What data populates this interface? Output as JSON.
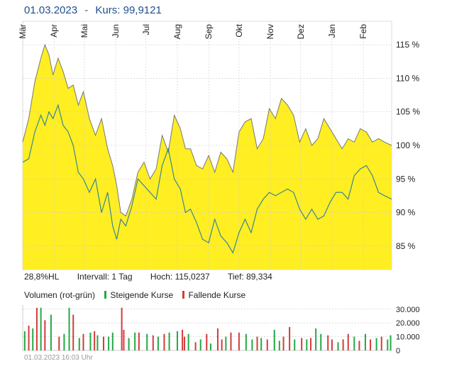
{
  "header": {
    "date": "01.03.2023",
    "separator": "-",
    "price_label": "Kurs: 99,9121"
  },
  "info": {
    "hl": "28,8%HL",
    "interval": "Intervall: 1 Tag",
    "high": "Hoch: 115,0237",
    "low": "Tief:  89,334"
  },
  "volume_legend": {
    "title": "Volumen (rot-grün)",
    "rising": "Steigende Kurse",
    "falling": "Fallende Kurse"
  },
  "footer": {
    "timestamp": "01.03.2023 16:03 Uhr"
  },
  "colors": {
    "area": "#ffee22",
    "main_line": "#777777",
    "compare_line": "#2a7f9a",
    "rising": "#22aa44",
    "falling": "#d63a3a",
    "grid": "#cccccc"
  },
  "chart_data": [
    {
      "type": "area",
      "title": "",
      "xlabel": "",
      "ylabel": "",
      "ylim": [
        81.5,
        118.5
      ],
      "y_ticks": [
        85,
        90,
        95,
        100,
        105,
        110,
        115
      ],
      "y_tick_labels": [
        "85 %",
        "90 %",
        "95 %",
        "100 %",
        "105 %",
        "110 %",
        "115 %"
      ],
      "x_tick_labels": [
        "Mär",
        "Apr",
        "Mai",
        "Jun",
        "Jul",
        "Aug",
        "Sep",
        "Okt",
        "Nov",
        "Dez",
        "Jan",
        "Feb"
      ],
      "x_tick_days": [
        0,
        31,
        61,
        92,
        122,
        153,
        184,
        214,
        245,
        275,
        306,
        337
      ],
      "x_range_days": [
        0,
        365
      ],
      "grid": true,
      "series": [
        {
          "x": [
            0,
            6,
            12,
            18,
            22,
            26,
            30,
            35,
            40,
            45,
            50,
            55,
            60,
            66,
            72,
            78,
            84,
            89,
            93,
            97,
            102,
            108,
            114,
            120,
            126,
            132,
            138,
            144,
            150,
            156,
            161,
            166,
            172,
            178,
            184,
            190,
            196,
            202,
            208,
            214,
            220,
            226,
            232,
            238,
            244,
            250,
            256,
            262,
            268,
            274,
            280,
            286,
            292,
            298,
            304,
            310,
            316,
            322,
            328,
            334,
            340,
            346,
            352,
            358,
            365
          ],
          "values": [
            100.5,
            104,
            109.5,
            113,
            115,
            113.5,
            110.5,
            113,
            111,
            108.5,
            109,
            106,
            108,
            104,
            101.5,
            104,
            99.5,
            97,
            94,
            90,
            89.5,
            92,
            96,
            97.5,
            95,
            96.5,
            101.5,
            99,
            104.5,
            102.5,
            99.5,
            99.5,
            97,
            96.5,
            98.5,
            96,
            99,
            98,
            96,
            102,
            103.5,
            104,
            99.5,
            101,
            105.5,
            104,
            107,
            106,
            104.5,
            100.5,
            102.5,
            100,
            101,
            104,
            102.5,
            101,
            99.5,
            101,
            100.5,
            102.5,
            102,
            100.5,
            101,
            100.5,
            100
          ]
        },
        {
          "x": [
            0,
            6,
            12,
            18,
            22,
            26,
            30,
            35,
            40,
            45,
            50,
            55,
            60,
            66,
            72,
            78,
            84,
            89,
            93,
            97,
            102,
            108,
            114,
            120,
            126,
            132,
            138,
            144,
            150,
            156,
            161,
            166,
            172,
            178,
            184,
            190,
            196,
            202,
            208,
            214,
            220,
            226,
            232,
            238,
            244,
            250,
            256,
            262,
            268,
            274,
            280,
            286,
            292,
            298,
            304,
            310,
            316,
            322,
            328,
            334,
            340,
            346,
            352,
            358,
            365
          ],
          "values": [
            97.5,
            98,
            102,
            104.5,
            103,
            105,
            104,
            106,
            103,
            102,
            100,
            96,
            95,
            93,
            95,
            90,
            93,
            88,
            86,
            89,
            88,
            91,
            95,
            94,
            93,
            92,
            97,
            99.5,
            95,
            93.5,
            90,
            90.5,
            88.5,
            86,
            85.5,
            89,
            86.5,
            85.5,
            84,
            87,
            89,
            87,
            90.5,
            92,
            93,
            92.5,
            93,
            93.5,
            93,
            90.5,
            89,
            90.5,
            89,
            89.5,
            91.5,
            93,
            93,
            92,
            95.5,
            96.5,
            97,
            95.5,
            93,
            92.5,
            92
          ]
        }
      ]
    },
    {
      "type": "bar",
      "title": "",
      "xlabel": "",
      "ylabel": "",
      "ylim": [
        0,
        33000
      ],
      "y_ticks": [
        0,
        10000,
        20000,
        30000
      ],
      "y_tick_labels": [
        "0",
        "10.000",
        "20.000",
        "30.000"
      ],
      "x_range_days": [
        0,
        365
      ],
      "series": [
        {
          "name": "Steigende Kurse",
          "x": [
            2,
            10,
            18,
            28,
            41,
            46,
            56,
            67,
            74,
            85,
            89,
            105,
            111,
            123,
            134,
            145,
            153,
            164,
            176,
            186,
            201,
            221,
            227,
            236,
            249,
            254,
            269,
            281,
            290,
            295,
            312,
            328,
            339,
            350,
            361,
            364
          ],
          "values": [
            14000,
            16000,
            31000,
            26000,
            12000,
            31000,
            9000,
            13000,
            11000,
            10000,
            13000,
            9000,
            13000,
            12000,
            10000,
            13000,
            14000,
            12000,
            8000,
            5000,
            10000,
            12000,
            8000,
            9000,
            15000,
            7000,
            8000,
            8000,
            16000,
            12000,
            6000,
            10000,
            12000,
            9000,
            8000,
            11000
          ]
        },
        {
          "name": "Fallende Kurse",
          "x": [
            6,
            14,
            22,
            36,
            50,
            60,
            71,
            80,
            98,
            100,
            115,
            129,
            140,
            158,
            160,
            171,
            182,
            193,
            197,
            206,
            214,
            232,
            242,
            258,
            264,
            276,
            285,
            302,
            306,
            317,
            322,
            333,
            344,
            355
          ],
          "values": [
            18000,
            31000,
            22000,
            10000,
            26000,
            12000,
            14000,
            10000,
            31000,
            15000,
            13000,
            11000,
            12000,
            15000,
            10000,
            6000,
            12000,
            16000,
            8000,
            13000,
            13000,
            10000,
            8000,
            10000,
            17000,
            9000,
            9000,
            11000,
            8000,
            8000,
            12000,
            7000,
            8000,
            10000
          ]
        }
      ]
    }
  ]
}
